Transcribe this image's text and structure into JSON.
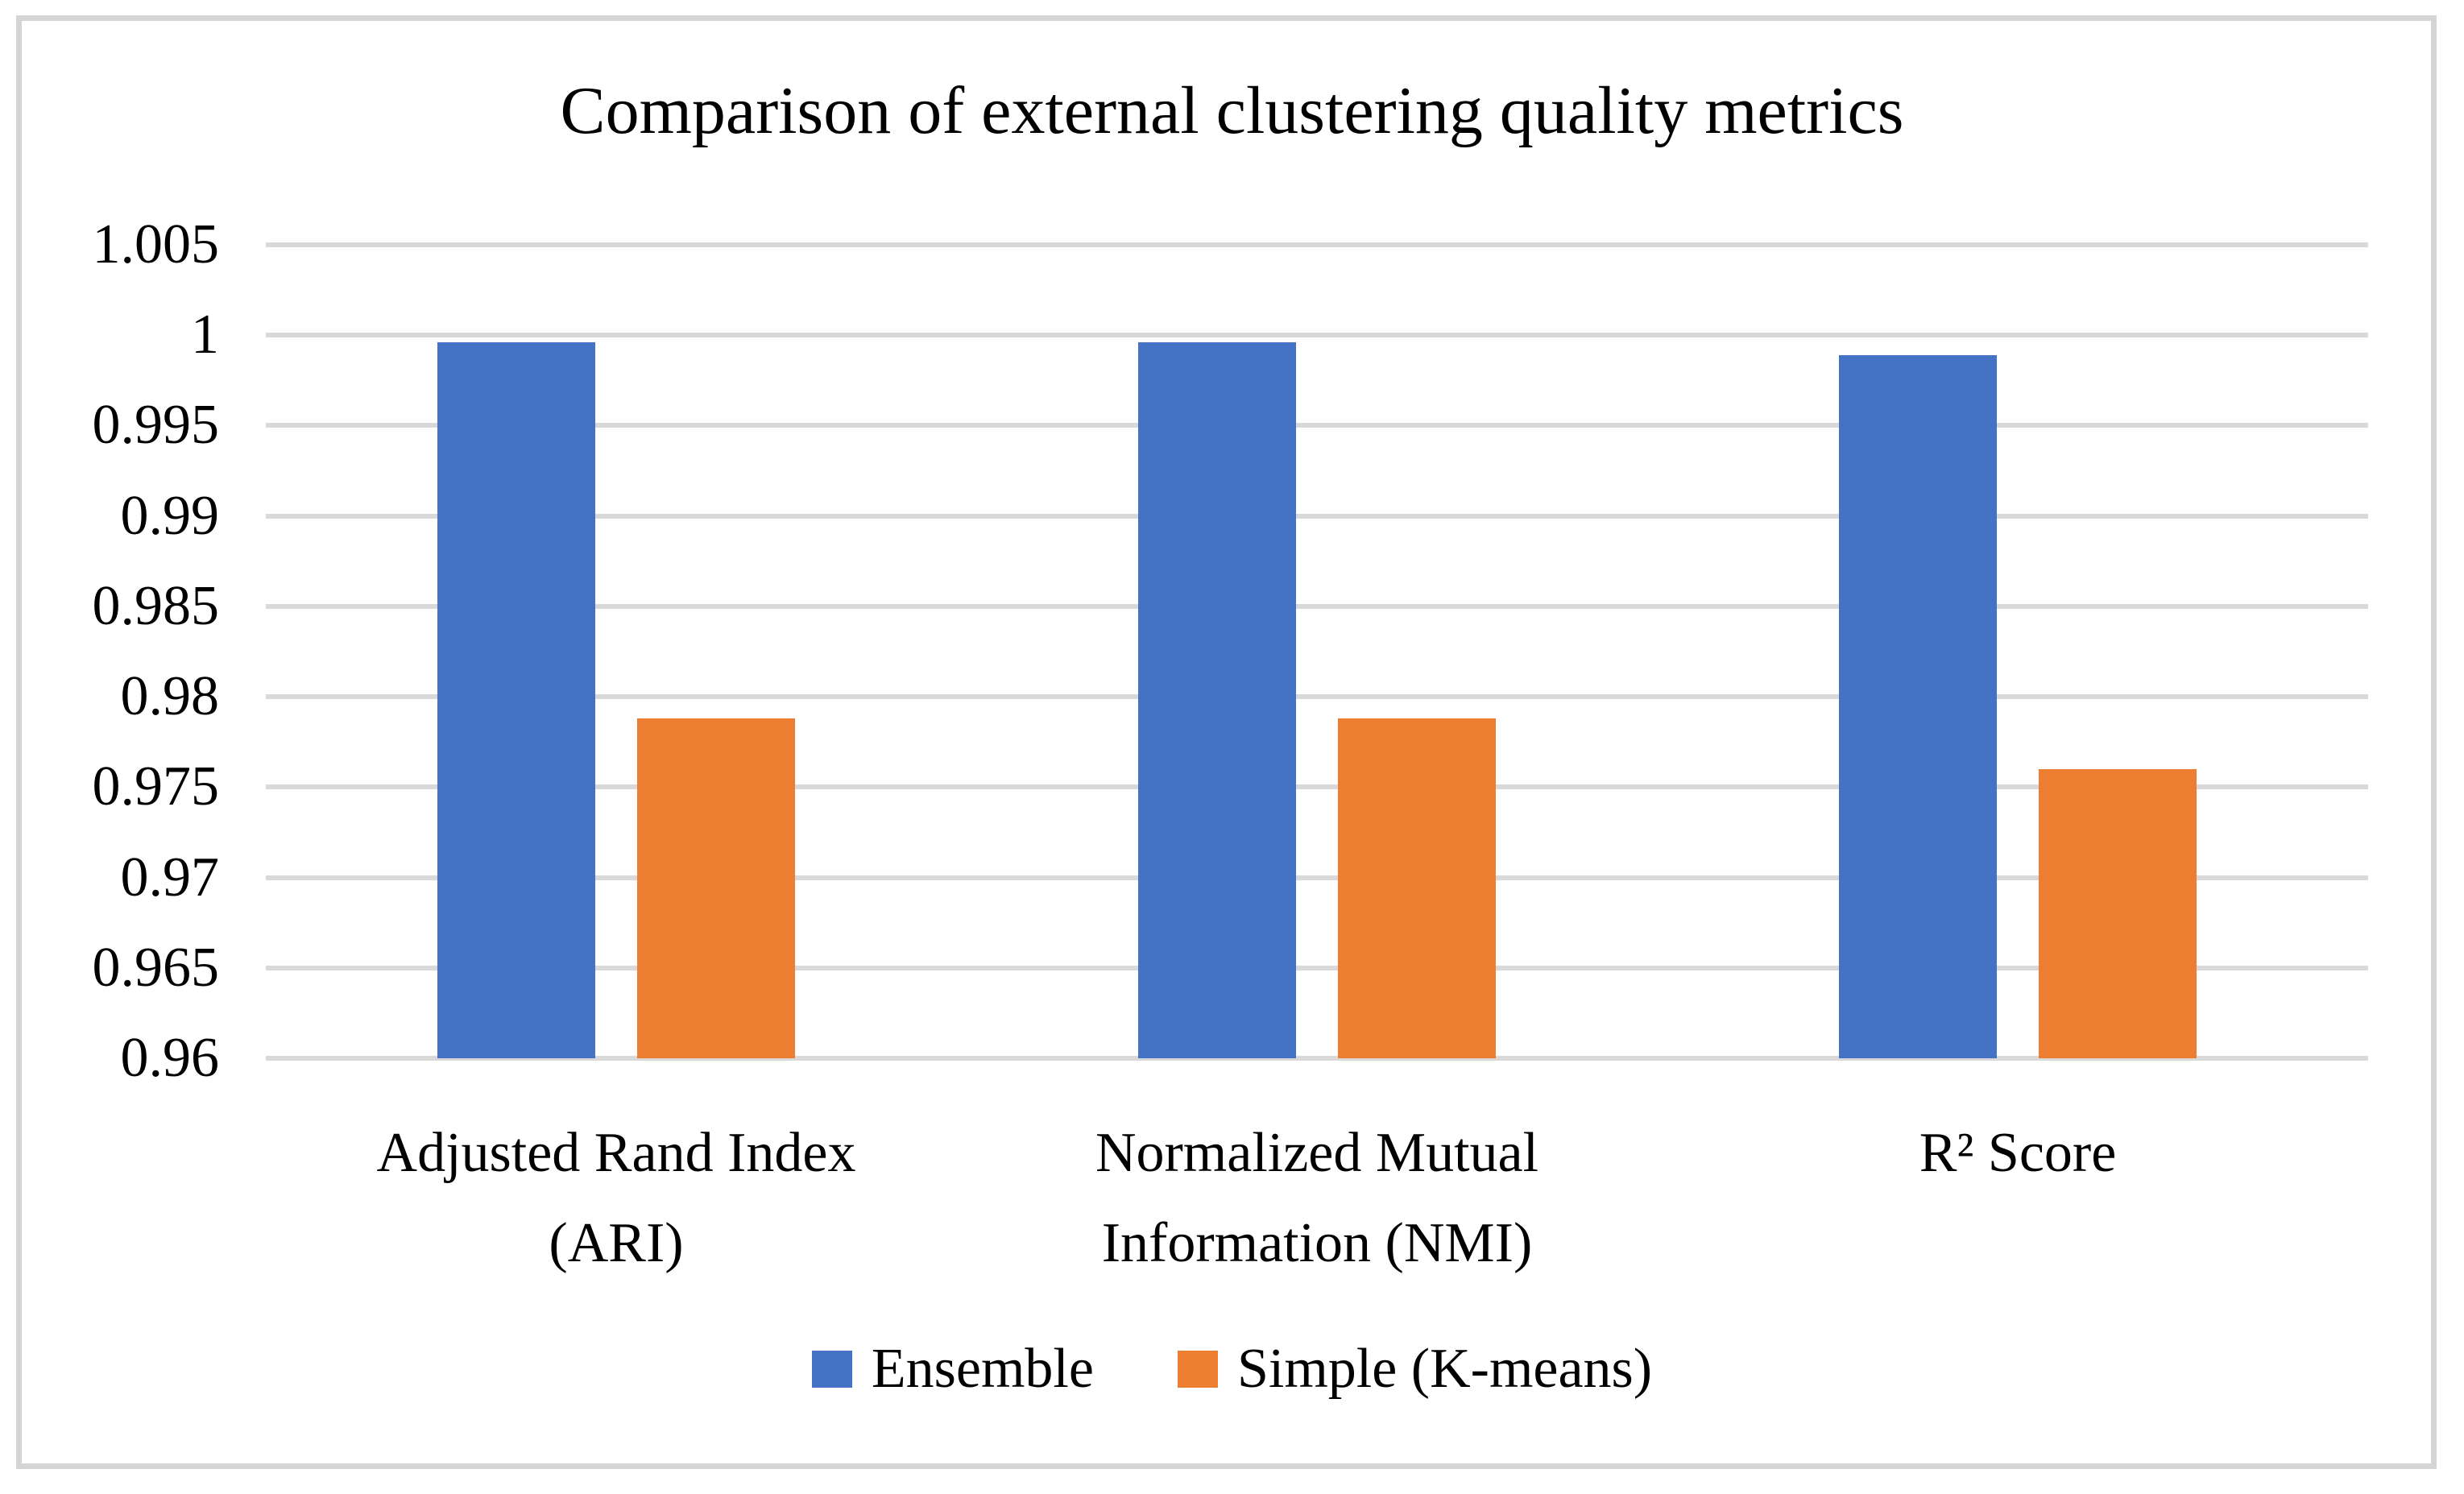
{
  "chart_data": {
    "type": "bar",
    "title": "Comparison of external clustering quality metrics",
    "categories": [
      "Adjusted Rand Index\n(ARI)",
      "Normalized Mutual\nInformation (NMI)",
      "R² Score"
    ],
    "series": [
      {
        "name": "Ensemble",
        "color": "#4472C4",
        "values": [
          0.9996,
          0.9996,
          0.9989
        ]
      },
      {
        "name": "Simple (K-means)",
        "color": "#ED7D31",
        "values": [
          0.9788,
          0.9788,
          0.976
        ]
      }
    ],
    "ylim": [
      0.96,
      1.005
    ],
    "ytick_step": 0.005,
    "ytick_labels": [
      "1.005",
      "1",
      "0.995",
      "0.99",
      "0.985",
      "0.98",
      "0.975",
      "0.97",
      "0.965",
      "0.96"
    ],
    "grid": true,
    "legend_position": "bottom",
    "xlabel": "",
    "ylabel": ""
  },
  "styles": {
    "background": "#FFFFFF",
    "text_color": "#000000",
    "gridline_color": "#D9D9D9",
    "frame_color": "#D5D5D5"
  }
}
